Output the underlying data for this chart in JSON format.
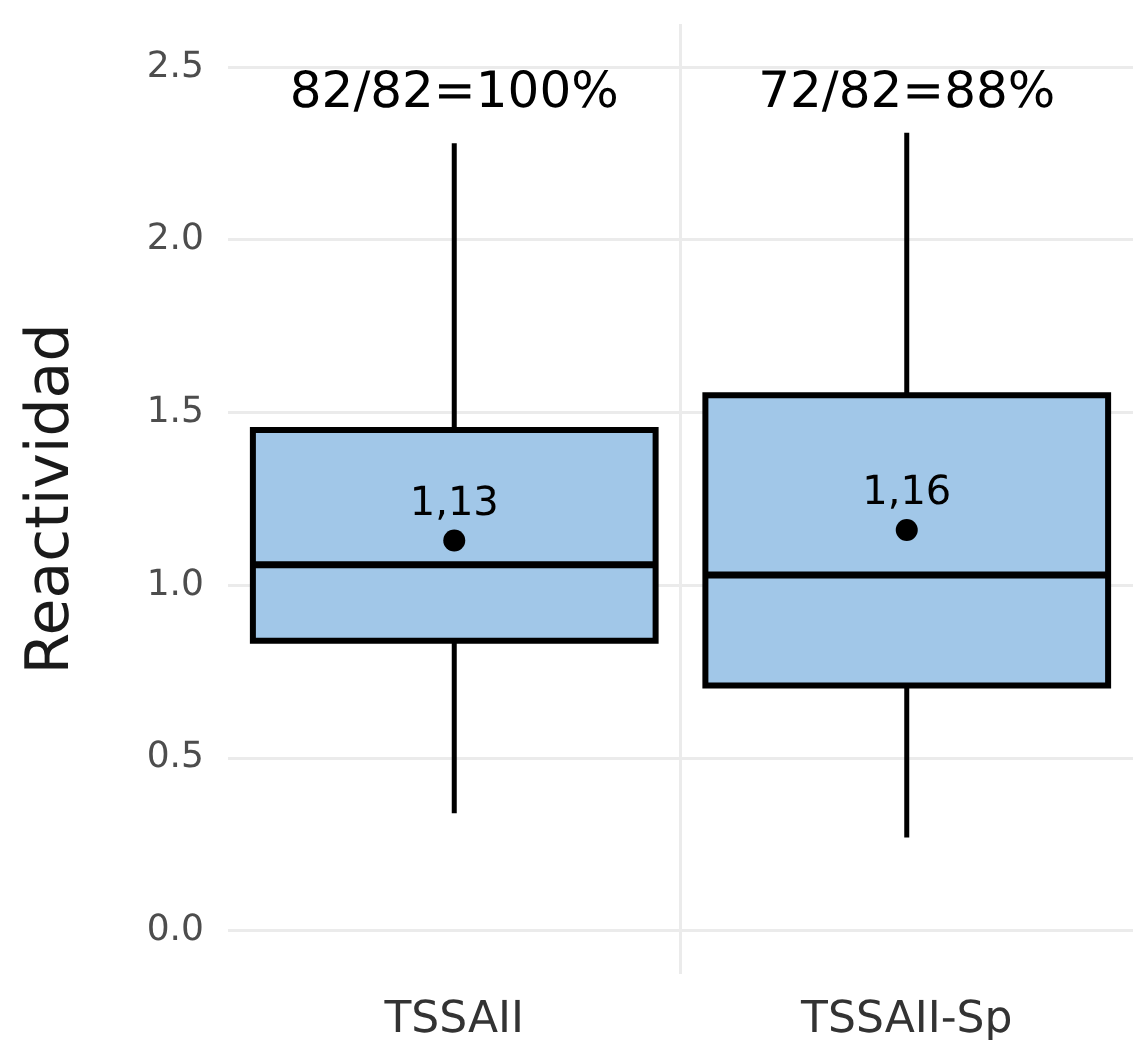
{
  "chart_data": {
    "type": "box",
    "ylabel": "Reactividad",
    "categories": [
      "TSSAII",
      "TSSAII-Sp"
    ],
    "boxes": [
      {
        "low": 0.34,
        "q1": 0.84,
        "median": 1.06,
        "q3": 1.45,
        "high": 2.28
      },
      {
        "low": 0.27,
        "q1": 0.71,
        "median": 1.03,
        "q3": 1.55,
        "high": 2.31
      }
    ],
    "color": "#a1c7e8",
    "series": [
      {
        "type": "scatter",
        "x": [
          "TSSAII",
          "TSSAII-Sp"
        ],
        "values": [
          1.13,
          1.16
        ],
        "value_labels": [
          "1,13",
          "1,16"
        ],
        "color": "#000000"
      }
    ],
    "marker": "circle",
    "ylim": [
      -0.125,
      2.625
    ],
    "yticks": [
      {
        "value": 0,
        "label": "0.0"
      },
      0.5,
      {
        "value": 1,
        "label": "1.0"
      },
      1.5,
      {
        "value": 2,
        "label": "2.0"
      },
      2.5
    ],
    "grid": true,
    "annotations": [
      "82/82=100%",
      "72/82=88%"
    ]
  }
}
